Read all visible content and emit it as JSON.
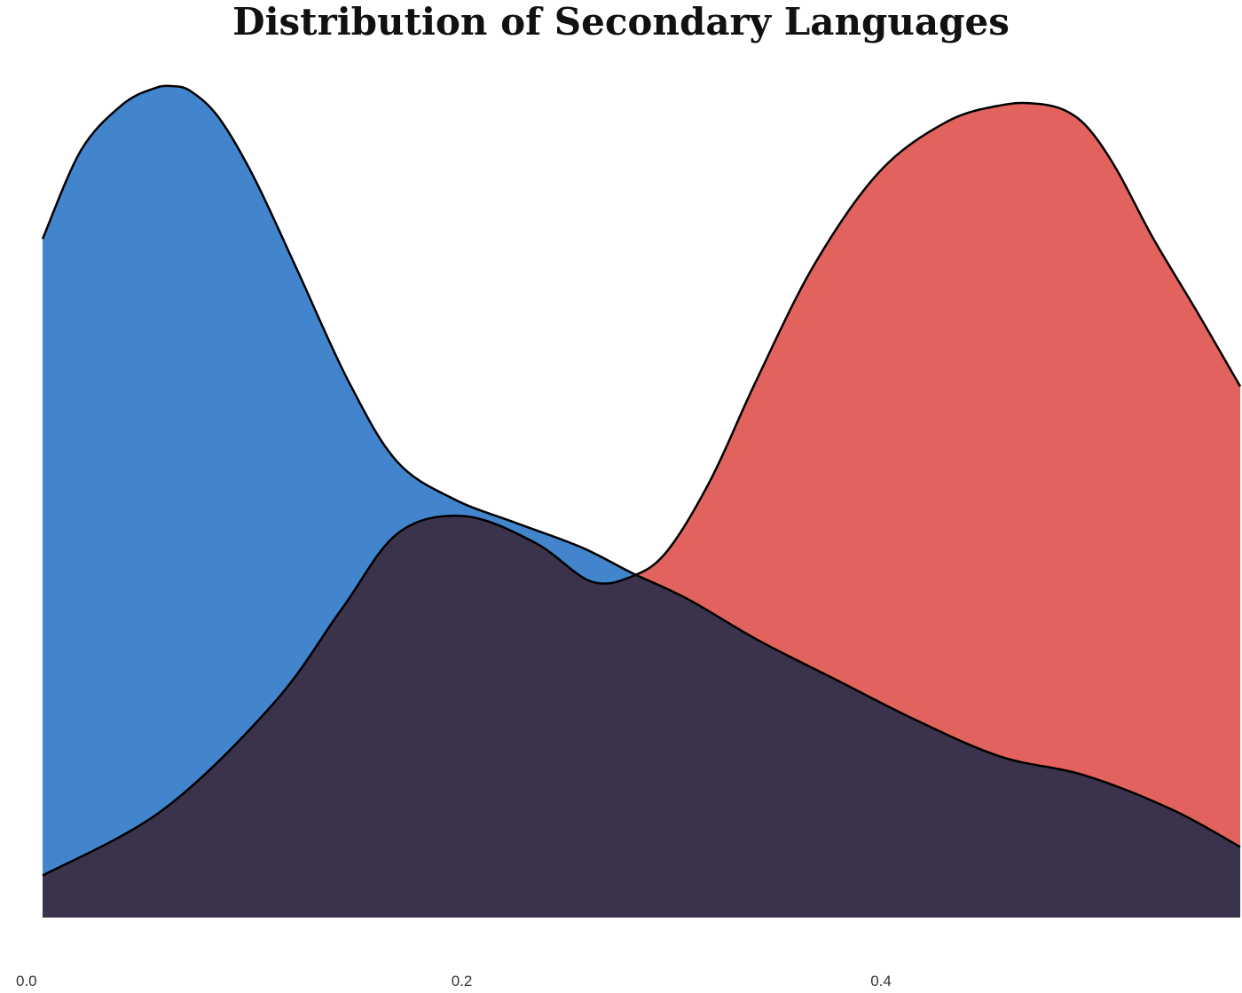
{
  "chart_data": {
    "type": "area",
    "title": "Distribution of Secondary Languages",
    "xlabel": "",
    "ylabel": "",
    "xlim": [
      0.0,
      0.5714
    ],
    "ylim": [
      0,
      1
    ],
    "x_ticks": [
      "0.0",
      "0.2",
      "0.4"
    ],
    "x_tick_values": [
      0.0,
      0.2,
      0.4
    ],
    "grid": false,
    "legend": "none",
    "series": [
      {
        "color": "#4285cd",
        "x": [
          0.0,
          0.0183,
          0.0379,
          0.0527,
          0.0616,
          0.0709,
          0.0843,
          0.1008,
          0.1212,
          0.1459,
          0.1691,
          0.1963,
          0.2263,
          0.2571,
          0.2816,
          0.308,
          0.3416,
          0.3794,
          0.4174,
          0.4571,
          0.4974,
          0.5396,
          0.5714
        ],
        "y": [
          0.8161,
          0.9226,
          0.9774,
          0.9968,
          1.0,
          0.9935,
          0.9613,
          0.8903,
          0.7806,
          0.6452,
          0.5484,
          0.5032,
          0.4742,
          0.4452,
          0.414,
          0.3828,
          0.3333,
          0.2849,
          0.2366,
          0.1935,
          0.1709,
          0.129,
          0.0849
        ]
      },
      {
        "color": "#e05a54",
        "x": [
          0.0,
          0.0571,
          0.11,
          0.1427,
          0.1696,
          0.2012,
          0.2351,
          0.2616,
          0.2816,
          0.298,
          0.3188,
          0.3404,
          0.3681,
          0.3992,
          0.4313,
          0.4582,
          0.4755,
          0.4885,
          0.4996,
          0.5126,
          0.5298,
          0.5502,
          0.5714
        ],
        "y": [
          0.0505,
          0.129,
          0.257,
          0.371,
          0.4624,
          0.4828,
          0.4506,
          0.4043,
          0.4108,
          0.4409,
          0.5269,
          0.6452,
          0.7849,
          0.8968,
          0.957,
          0.9774,
          0.9785,
          0.9699,
          0.9473,
          0.8989,
          0.8172,
          0.7312,
          0.6387
        ]
      }
    ]
  }
}
